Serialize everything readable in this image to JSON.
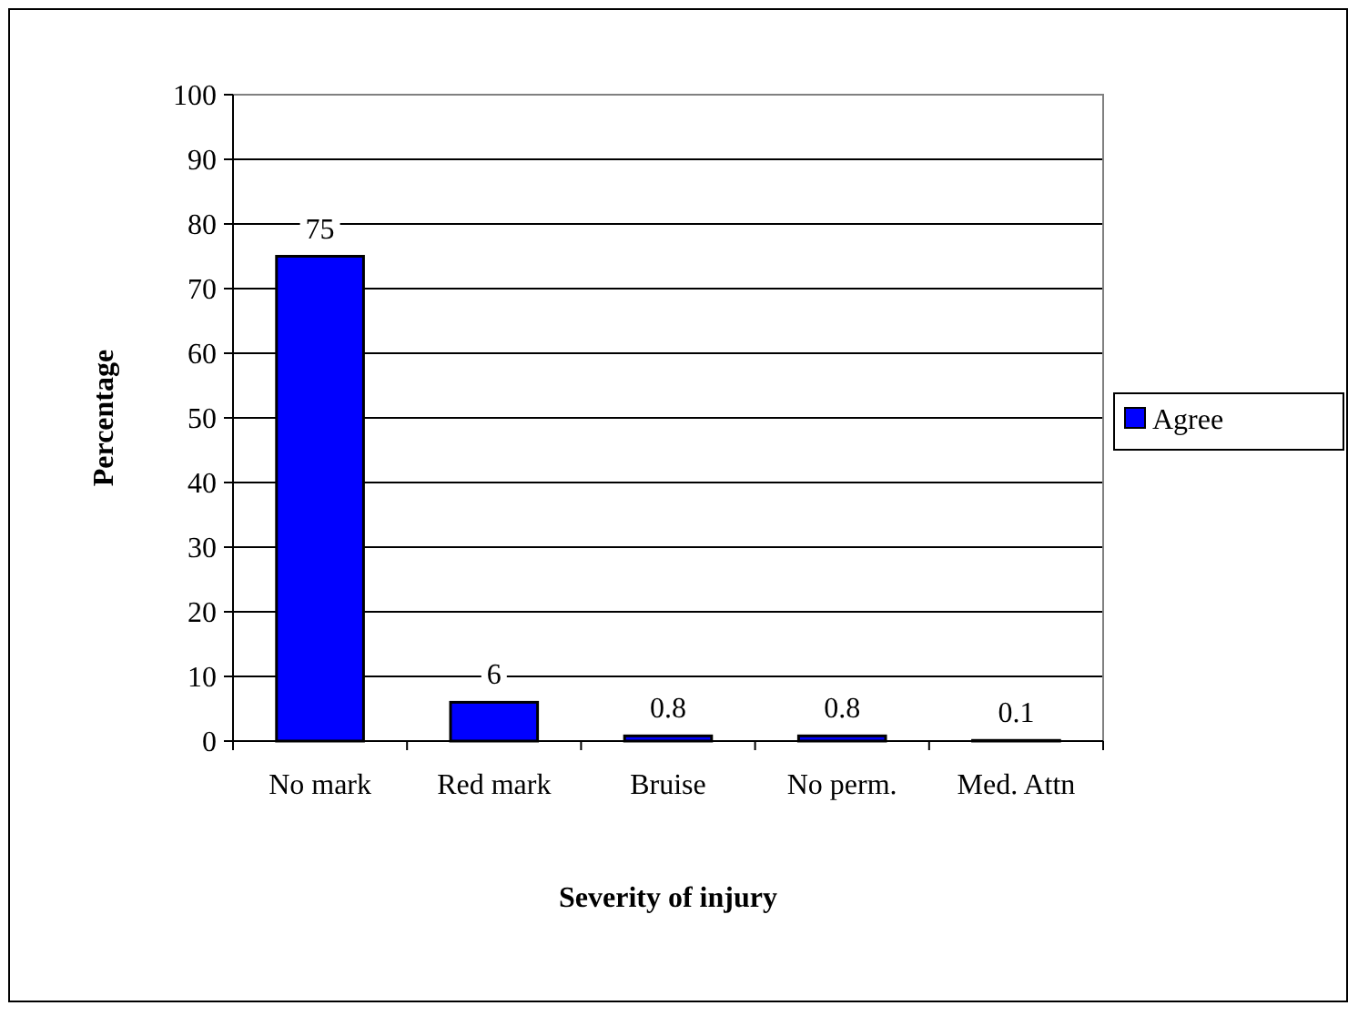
{
  "chart_data": {
    "type": "bar",
    "xlabel": "Severity of injury",
    "ylabel": "Percentage",
    "categories": [
      "No mark",
      "Red mark",
      "Bruise",
      "No perm.",
      "Med. Attn"
    ],
    "series": [
      {
        "name": "Agree",
        "color": "#0000ff",
        "values": [
          75,
          6,
          0.8,
          0.8,
          0.1
        ]
      }
    ],
    "ylim": [
      0,
      100
    ],
    "yticks": [
      0,
      10,
      20,
      30,
      40,
      50,
      60,
      70,
      80,
      90,
      100
    ],
    "grid": "y",
    "legend": "right",
    "data_labels": true
  }
}
